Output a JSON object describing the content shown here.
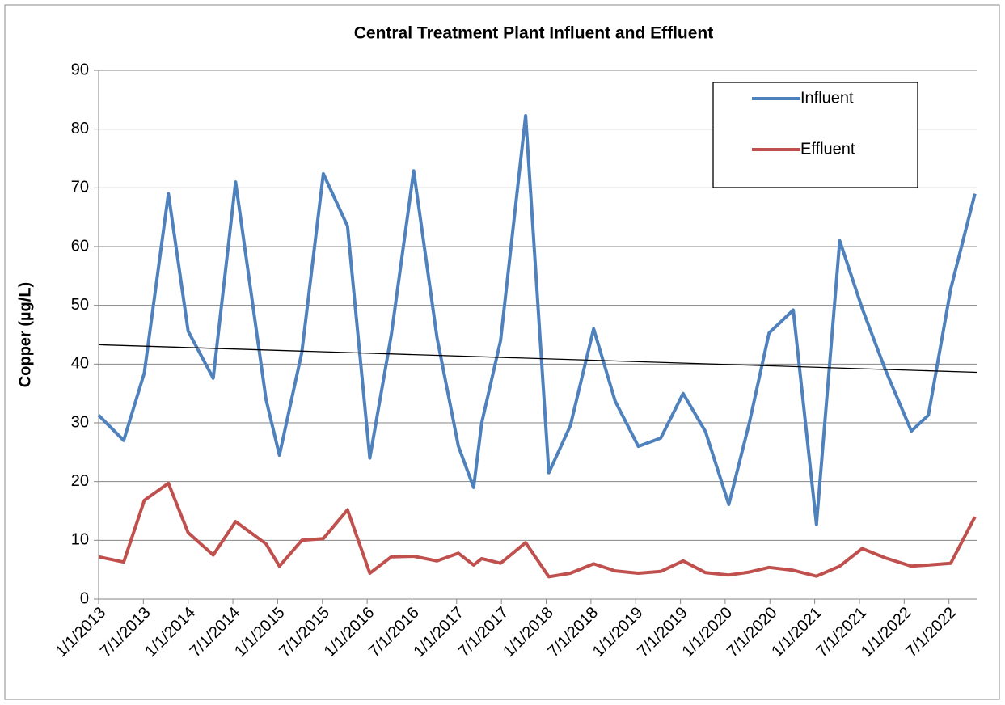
{
  "chart_data": {
    "type": "line",
    "title": "Central Treatment Plant Influent and Effluent",
    "y_label": "Copper (µg/L)",
    "x": [
      2013.0,
      2013.28,
      2013.51,
      2013.78,
      2014.0,
      2014.28,
      2014.53,
      2014.87,
      2015.02,
      2015.27,
      2015.51,
      2015.78,
      2016.03,
      2016.27,
      2016.52,
      2016.78,
      2017.02,
      2017.19,
      2017.28,
      2017.49,
      2017.77,
      2018.03,
      2018.27,
      2018.53,
      2018.77,
      2019.03,
      2019.28,
      2019.53,
      2019.78,
      2020.04,
      2020.27,
      2020.49,
      2020.76,
      2021.02,
      2021.28,
      2021.53,
      2021.79,
      2022.08,
      2022.27,
      2022.52,
      2022.79
    ],
    "series": [
      {
        "name": "Influent",
        "color": "#4f81bd",
        "values": [
          31.3,
          27,
          38.5,
          69,
          45.6,
          37.6,
          71,
          34,
          24.5,
          42,
          72.4,
          63.5,
          24,
          45,
          72.9,
          44.5,
          26,
          19,
          30,
          44,
          82.3,
          21.5,
          29.5,
          46,
          33.7,
          26,
          27.4,
          35,
          28.5,
          16.1,
          30,
          45.3,
          49.2,
          12.7,
          61,
          49.5,
          39,
          28.6,
          31.3,
          52.8,
          69
        ]
      },
      {
        "name": "Effluent",
        "color": "#c0504d",
        "values": [
          7.2,
          6.3,
          16.8,
          19.7,
          11.3,
          7.5,
          13.2,
          9.4,
          5.6,
          10,
          10.3,
          15.2,
          4.4,
          7.2,
          7.3,
          6.5,
          7.8,
          5.8,
          6.9,
          6.1,
          9.6,
          3.8,
          4.4,
          6,
          4.8,
          4.4,
          4.7,
          6.5,
          4.5,
          4.1,
          4.6,
          5.4,
          4.9,
          3.9,
          5.6,
          8.6,
          7,
          5.6,
          5.8,
          6.1,
          14
        ]
      }
    ],
    "trendline": {
      "color": "#000000",
      "x": [
        2013.0,
        2022.81
      ],
      "values": [
        43.3,
        38.6
      ]
    },
    "xlim": [
      2013.0,
      2022.81
    ],
    "xticks": [
      {
        "value": 2013.0,
        "label": "1/1/2013"
      },
      {
        "value": 2013.5,
        "label": "7/1/2013"
      },
      {
        "value": 2014.0,
        "label": "1/1/2014"
      },
      {
        "value": 2014.5,
        "label": "7/1/2014"
      },
      {
        "value": 2015.0,
        "label": "1/1/2015"
      },
      {
        "value": 2015.5,
        "label": "7/1/2015"
      },
      {
        "value": 2016.0,
        "label": "1/1/2016"
      },
      {
        "value": 2016.5,
        "label": "7/1/2016"
      },
      {
        "value": 2017.0,
        "label": "1/1/2017"
      },
      {
        "value": 2017.5,
        "label": "7/1/2017"
      },
      {
        "value": 2018.0,
        "label": "1/1/2018"
      },
      {
        "value": 2018.5,
        "label": "7/1/2018"
      },
      {
        "value": 2019.0,
        "label": "1/1/2019"
      },
      {
        "value": 2019.5,
        "label": "7/1/2019"
      },
      {
        "value": 2020.0,
        "label": "1/1/2020"
      },
      {
        "value": 2020.5,
        "label": "7/1/2020"
      },
      {
        "value": 2021.0,
        "label": "1/1/2021"
      },
      {
        "value": 2021.5,
        "label": "7/1/2021"
      },
      {
        "value": 2022.0,
        "label": "1/1/2022"
      },
      {
        "value": 2022.5,
        "label": "7/1/2022"
      }
    ],
    "ylim": [
      0,
      90
    ],
    "yticks": [
      0,
      10,
      20,
      30,
      40,
      50,
      60,
      70,
      80,
      90
    ],
    "grid": true,
    "legend": "top-right"
  }
}
